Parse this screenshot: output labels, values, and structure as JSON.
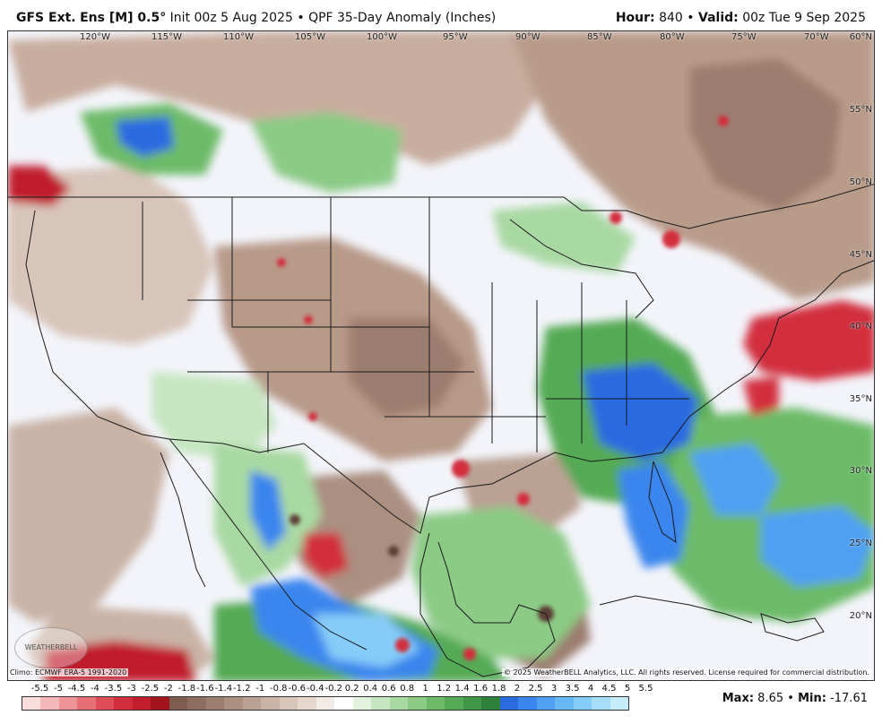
{
  "header": {
    "model": "GFS Ext.",
    "ens": "Ens [M] 0.5°",
    "init": "Init 00z 5 Aug 2025",
    "sep": "•",
    "product": "QPF 35-Day Anomaly (Inches)",
    "hour_label": "Hour:",
    "hour_value": "840",
    "valid_label": "Valid:",
    "valid_value": "00z Tue 9 Sep 2025"
  },
  "map": {
    "longitudes": [
      "120°W",
      "115°W",
      "110°W",
      "105°W",
      "100°W",
      "95°W",
      "90°W",
      "85°W",
      "80°W",
      "75°W",
      "70°W"
    ],
    "latitudes": [
      "60°N",
      "55°N",
      "50°N",
      "45°N",
      "40°N",
      "35°N",
      "30°N",
      "25°N",
      "20°N"
    ],
    "climo_text": "Climo: ECMWF ERA-5 1991-2020",
    "copyright_text": "© 2025 WeatherBELL Analytics, LLC. All rights reserved. License required for commercial distribution.",
    "logo_text": "WEATHERBELL"
  },
  "legend": {
    "labels": [
      "-5.5",
      "-5",
      "-4.5",
      "-4",
      "-3.5",
      "-3",
      "-2.5",
      "-2",
      "-1.8",
      "-1.6",
      "-1.4",
      "-1.2",
      "-1",
      "-0.8",
      "-0.6",
      "-0.4",
      "-0.2",
      "0.2",
      "0.4",
      "0.6",
      "0.8",
      "1",
      "1.2",
      "1.4",
      "1.6",
      "1.8",
      "2",
      "2.5",
      "3",
      "3.5",
      "4",
      "4.5",
      "5",
      "5.5"
    ],
    "colors": [
      "#f9dcdc",
      "#f4b8bb",
      "#ee9499",
      "#e77077",
      "#de4c57",
      "#d22d3c",
      "#c11d2d",
      "#a3141f",
      "#7e5c4f",
      "#8d6d5f",
      "#9c7e70",
      "#ab8f81",
      "#baa193",
      "#c9b3a6",
      "#d8c5b9",
      "#e6d7cc",
      "#f2ebe5",
      "#ffffff",
      "#e2f2df",
      "#c6e6c1",
      "#a9d9a3",
      "#8bcb85",
      "#6dbb69",
      "#54aa55",
      "#3f9647",
      "#2e803a",
      "#2a6be0",
      "#3a86ee",
      "#4fa0f3",
      "#69b8f6",
      "#86ccf8",
      "#a6def9",
      "#c6ecfb"
    ],
    "max_label": "Max:",
    "max_value": "8.65",
    "min_label": "Min:",
    "min_value": "-17.61",
    "sep": "•"
  }
}
